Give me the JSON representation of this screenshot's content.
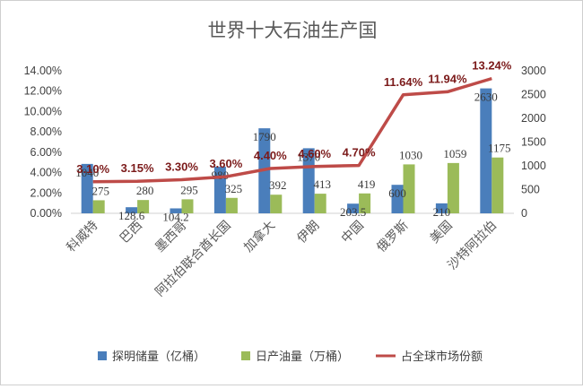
{
  "chart_data": {
    "type": "bar+line",
    "title": "世界十大石油生产国",
    "categories": [
      "科威特",
      "巴西",
      "墨西哥",
      "阿拉伯联合酋长国",
      "加拿大",
      "伊朗",
      "中国",
      "俄罗斯",
      "美国",
      "沙特阿拉伯"
    ],
    "series": [
      {
        "name": "探明储量（亿桶）",
        "axis": "right",
        "color": "#4a7ebb",
        "values": [
          1040,
          128.6,
          104.2,
          980,
          1790,
          1370,
          203.5,
          600,
          210,
          2630
        ],
        "labels": [
          "1040",
          "128.6",
          "104.2",
          "980",
          "1790",
          "1370",
          "203.5",
          "600",
          "210",
          "2630"
        ]
      },
      {
        "name": "日产油量（万桶）",
        "axis": "right",
        "color": "#9bbb59",
        "values": [
          275,
          280,
          295,
          325,
          392,
          413,
          419,
          1030,
          1059,
          1175
        ],
        "labels": [
          "275",
          "280",
          "295",
          "325",
          "392",
          "413",
          "419",
          "1030",
          "1059",
          "1175"
        ]
      },
      {
        "name": "占全球市场份额",
        "axis": "left",
        "type": "line",
        "color": "#be4b48",
        "values": [
          3.1,
          3.15,
          3.3,
          3.6,
          4.4,
          4.6,
          4.7,
          11.64,
          11.94,
          13.24
        ],
        "labels": [
          "3.10%",
          "3.15%",
          "3.30%",
          "3.60%",
          "4.40%",
          "4.60%",
          "4.70%",
          "11.64%",
          "11.94%",
          "13.24%"
        ]
      }
    ],
    "y_left": {
      "min": 0,
      "max": 14,
      "step": 2,
      "ticks": [
        "0.00%",
        "2.00%",
        "4.00%",
        "6.00%",
        "8.00%",
        "10.00%",
        "12.00%",
        "14.00%"
      ]
    },
    "y_right": {
      "min": 0,
      "max": 3000,
      "step": 500,
      "ticks": [
        "0",
        "500",
        "1000",
        "1500",
        "2000",
        "2500",
        "3000"
      ]
    },
    "legend_position": "bottom"
  }
}
